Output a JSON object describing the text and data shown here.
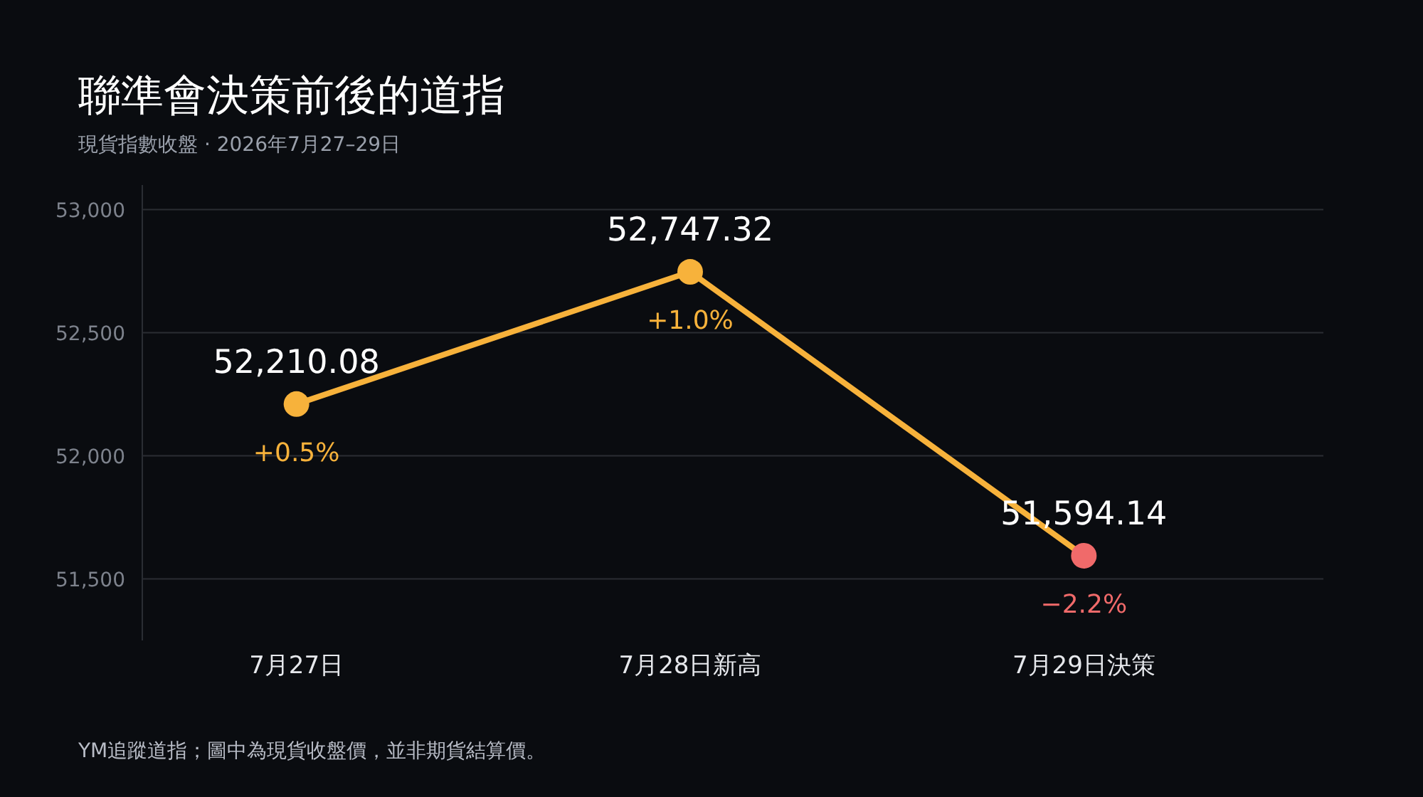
{
  "chart_data": {
    "type": "line",
    "title": "聯準會決策前後的道指",
    "subtitle": "現貨指數收盤 · 2026年7月27–29日",
    "categories": [
      "7月27日",
      "7月28日新高",
      "7月29日決策"
    ],
    "series": [
      {
        "color": "#f7b23b",
        "colors": [
          "#f7b23b",
          "#f7b23b",
          "#f06a6a"
        ],
        "values": [
          52210.08,
          52747.32,
          51594.14
        ],
        "value_labels": [
          "52,210.08",
          "52,747.32",
          "51,594.14"
        ]
      }
    ],
    "marker": "circle",
    "line_style": "solid",
    "ylim": [
      51250,
      53100
    ],
    "yticks": [
      {
        "value": 51500,
        "label": "51,500"
      },
      {
        "value": 52000,
        "label": "52,000"
      },
      {
        "value": 52500,
        "label": "52,500"
      },
      {
        "value": 53000,
        "label": "53,000"
      }
    ],
    "grid": "y",
    "annotations": [
      {
        "text": "+0.5%",
        "x": "7月27日",
        "y": 52210.08
      },
      {
        "text": "+1.0%",
        "x": "7月28日新高",
        "y": 52747.32
      },
      {
        "text": "−2.2%",
        "x": "7月29日決策",
        "y": 51594.14
      },
      "YM追蹤道指；圖中為現貨收盤價，並非期貨結算價。"
    ]
  }
}
